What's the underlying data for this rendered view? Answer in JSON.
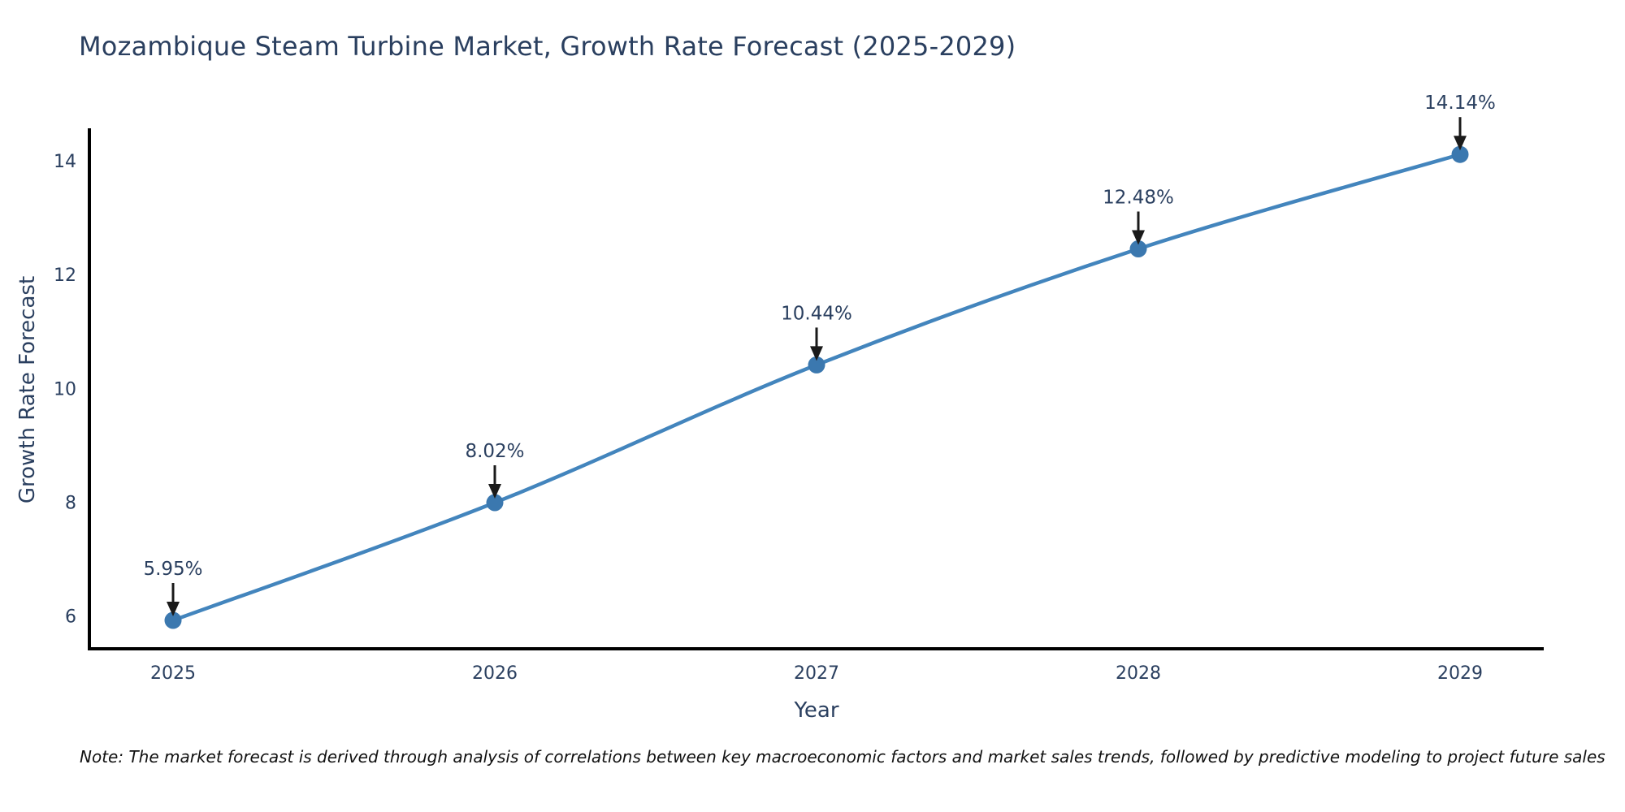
{
  "title": "Mozambique Steam Turbine Market, Growth Rate Forecast (2025-2029)",
  "note": "Note: The market forecast is derived through analysis of correlations between key macroeconomic factors and market sales trends, followed by predictive modeling to project future sales",
  "chart_data": {
    "type": "line",
    "title": "Mozambique Steam Turbine Market, Growth Rate Forecast (2025-2029)",
    "xlabel": "Year",
    "ylabel": "Growth Rate Forecast",
    "x": [
      2025,
      2026,
      2027,
      2028,
      2029
    ],
    "xticklabels": [
      "2025",
      "2026",
      "2027",
      "2028",
      "2029"
    ],
    "yticks": [
      6,
      8,
      10,
      12,
      14
    ],
    "ylim": [
      5.45,
      14.6
    ],
    "xlim": [
      2024.74,
      2029.26
    ],
    "grid": false,
    "legend": false,
    "series": [
      {
        "name": "Growth Rate Forecast",
        "values": [
          5.95,
          8.02,
          10.44,
          12.48,
          14.14
        ],
        "point_labels": [
          "5.95%",
          "8.02%",
          "10.44%",
          "12.48%",
          "14.14%"
        ]
      }
    ],
    "line_color": "#4385bd",
    "marker_color": "#3b78af",
    "axis_color": "#000000",
    "annotation_arrow_color": "#1a1a1a",
    "text_color": "#2a3f5f"
  }
}
